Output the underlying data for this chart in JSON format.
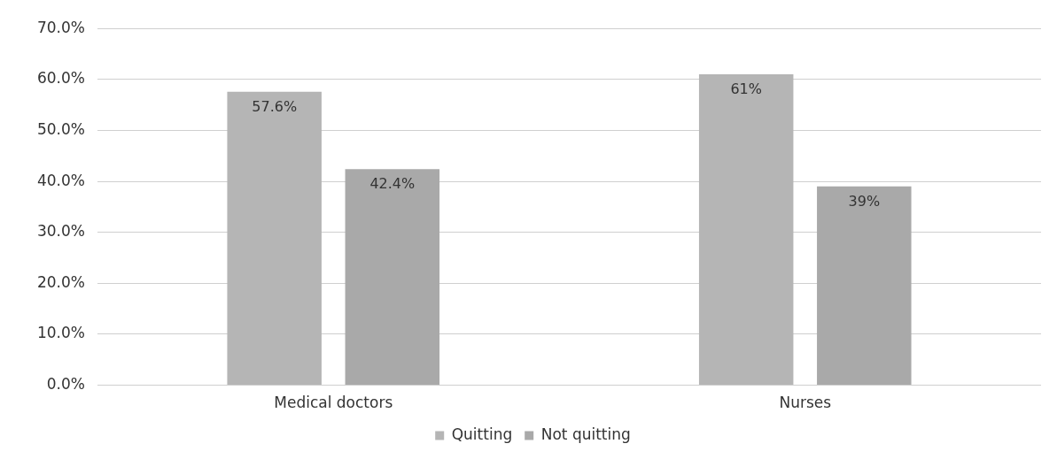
{
  "chart_data": {
    "type": "bar",
    "categories": [
      "Medical doctors",
      "Nurses"
    ],
    "series": [
      {
        "name": "Quitting",
        "color": "#b5b5b5",
        "values": [
          57.6,
          61
        ],
        "value_labels": [
          "57.6%",
          "61%"
        ]
      },
      {
        "name": "Not quitting",
        "color": "#a9a9a9",
        "values": [
          42.4,
          39
        ],
        "value_labels": [
          "42.4%",
          "39%"
        ]
      }
    ],
    "ylim": [
      0,
      70
    ],
    "yticks": [
      {
        "value": 0,
        "label": "0.0%"
      },
      {
        "value": 10,
        "label": "10.0%"
      },
      {
        "value": 20,
        "label": "20.0%"
      },
      {
        "value": 30,
        "label": "30.0%"
      },
      {
        "value": 40,
        "label": "40.0%"
      },
      {
        "value": 50,
        "label": "50.0%"
      },
      {
        "value": 60,
        "label": "60.0%"
      },
      {
        "value": 70,
        "label": "70.0%"
      }
    ],
    "grid": "y",
    "legend": "bottom"
  }
}
